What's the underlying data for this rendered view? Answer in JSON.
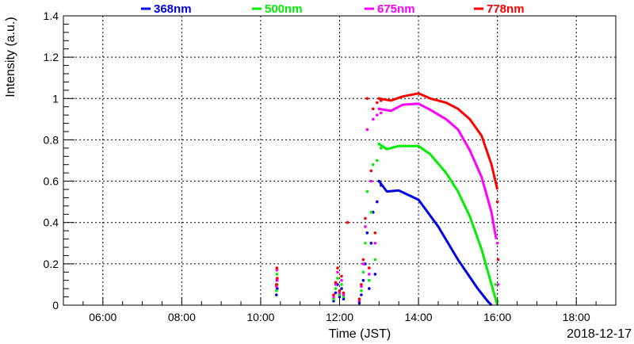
{
  "chart_data": {
    "type": "scatter",
    "xlabel": "Time (JST)",
    "ylabel": "Intensity (a.u.)",
    "date_label": "2018-12-17",
    "xlim": [
      5.0,
      19.0
    ],
    "ylim": [
      0,
      1.4
    ],
    "x_ticks": [
      6,
      8,
      10,
      12,
      14,
      16,
      18
    ],
    "x_tick_labels": [
      "06:00",
      "08:00",
      "10:00",
      "12:00",
      "14:00",
      "16:00",
      "18:00"
    ],
    "y_ticks": [
      0,
      0.2,
      0.4,
      0.6,
      0.8,
      1,
      1.2,
      1.4
    ],
    "y_tick_labels": [
      "0",
      "0.2",
      "0.4",
      "0.6",
      "0.8",
      "1",
      "1.2",
      "1.4"
    ],
    "grid": true,
    "legend_position": "top",
    "series": [
      {
        "name": "368nm",
        "color": "#0000e6",
        "points": [
          [
            10.4,
            0.05
          ],
          [
            10.41,
            0.12
          ],
          [
            10.42,
            0.08
          ],
          [
            11.85,
            0.02
          ],
          [
            11.9,
            0.06
          ],
          [
            11.95,
            0.1
          ],
          [
            12.0,
            0.04
          ],
          [
            12.05,
            0.08
          ],
          [
            12.1,
            0.03
          ],
          [
            12.5,
            0.01
          ],
          [
            12.55,
            0.05
          ],
          [
            12.6,
            0.12
          ],
          [
            12.65,
            0.2
          ],
          [
            12.7,
            0.35
          ],
          [
            12.75,
            0.08
          ],
          [
            12.8,
            0.3
          ],
          [
            12.85,
            0.45
          ],
          [
            12.9,
            0.15
          ],
          [
            12.95,
            0.5
          ],
          [
            13.0,
            0.6
          ],
          [
            13.05,
            0.58
          ]
        ],
        "curve": [
          [
            13.0,
            0.6
          ],
          [
            13.2,
            0.55
          ],
          [
            13.5,
            0.555
          ],
          [
            14.0,
            0.51
          ],
          [
            14.5,
            0.38
          ],
          [
            15.0,
            0.22
          ],
          [
            15.5,
            0.08
          ],
          [
            15.75,
            0.02
          ],
          [
            15.85,
            0.0
          ]
        ]
      },
      {
        "name": "500nm",
        "color": "#00ee00",
        "points": [
          [
            10.4,
            0.07
          ],
          [
            10.41,
            0.15
          ],
          [
            10.42,
            0.1
          ],
          [
            11.85,
            0.03
          ],
          [
            11.9,
            0.08
          ],
          [
            11.95,
            0.13
          ],
          [
            12.0,
            0.05
          ],
          [
            12.05,
            0.1
          ],
          [
            12.1,
            0.04
          ],
          [
            12.5,
            0.02
          ],
          [
            12.55,
            0.07
          ],
          [
            12.6,
            0.16
          ],
          [
            12.65,
            0.3
          ],
          [
            12.7,
            0.55
          ],
          [
            12.75,
            0.12
          ],
          [
            12.8,
            0.45
          ],
          [
            12.85,
            0.68
          ],
          [
            12.9,
            0.22
          ],
          [
            12.95,
            0.7
          ],
          [
            13.0,
            0.78
          ],
          [
            13.05,
            0.76
          ],
          [
            15.95,
            0.1
          ],
          [
            16.0,
            0.02
          ]
        ],
        "curve": [
          [
            13.0,
            0.78
          ],
          [
            13.2,
            0.755
          ],
          [
            13.5,
            0.77
          ],
          [
            14.0,
            0.77
          ],
          [
            14.3,
            0.73
          ],
          [
            14.7,
            0.64
          ],
          [
            15.0,
            0.55
          ],
          [
            15.3,
            0.43
          ],
          [
            15.6,
            0.27
          ],
          [
            15.85,
            0.1
          ],
          [
            16.0,
            0.0
          ]
        ]
      },
      {
        "name": "675nm",
        "color": "#ff00ff",
        "points": [
          [
            10.4,
            0.09
          ],
          [
            10.41,
            0.17
          ],
          [
            10.42,
            0.12
          ],
          [
            11.85,
            0.04
          ],
          [
            11.9,
            0.1
          ],
          [
            11.95,
            0.16
          ],
          [
            12.0,
            0.06
          ],
          [
            12.05,
            0.12
          ],
          [
            12.1,
            0.05
          ],
          [
            12.5,
            0.02
          ],
          [
            12.55,
            0.09
          ],
          [
            12.6,
            0.2
          ],
          [
            12.65,
            0.38
          ],
          [
            12.7,
            0.85
          ],
          [
            12.75,
            0.15
          ],
          [
            12.8,
            0.6
          ],
          [
            12.85,
            0.9
          ],
          [
            12.9,
            0.3
          ],
          [
            12.95,
            0.92
          ],
          [
            13.0,
            0.95
          ],
          [
            13.05,
            0.93
          ],
          [
            16.0,
            0.3
          ],
          [
            16.02,
            0.1
          ]
        ],
        "curve": [
          [
            13.0,
            0.95
          ],
          [
            13.3,
            0.94
          ],
          [
            13.6,
            0.97
          ],
          [
            14.0,
            0.975
          ],
          [
            14.3,
            0.945
          ],
          [
            14.7,
            0.9
          ],
          [
            15.0,
            0.85
          ],
          [
            15.3,
            0.75
          ],
          [
            15.6,
            0.62
          ],
          [
            15.85,
            0.45
          ],
          [
            15.97,
            0.32
          ]
        ]
      },
      {
        "name": "778nm",
        "color": "#ff0000",
        "points": [
          [
            10.4,
            0.1
          ],
          [
            10.41,
            0.18
          ],
          [
            10.42,
            0.13
          ],
          [
            11.85,
            0.05
          ],
          [
            11.9,
            0.11
          ],
          [
            11.95,
            0.18
          ],
          [
            12.0,
            0.07
          ],
          [
            12.05,
            0.14
          ],
          [
            12.1,
            0.06
          ],
          [
            12.2,
            0.4
          ],
          [
            12.5,
            0.03
          ],
          [
            12.55,
            0.1
          ],
          [
            12.6,
            0.22
          ],
          [
            12.65,
            0.42
          ],
          [
            12.7,
            1.0
          ],
          [
            12.75,
            0.18
          ],
          [
            12.8,
            0.65
          ],
          [
            12.85,
            0.95
          ],
          [
            12.9,
            0.35
          ],
          [
            12.95,
            0.98
          ],
          [
            13.0,
            1.0
          ],
          [
            13.05,
            0.99
          ],
          [
            16.0,
            0.5
          ],
          [
            16.02,
            0.22
          ]
        ],
        "curve": [
          [
            13.0,
            1.0
          ],
          [
            13.3,
            0.99
          ],
          [
            13.6,
            1.01
          ],
          [
            14.0,
            1.025
          ],
          [
            14.3,
            1.0
          ],
          [
            14.7,
            0.98
          ],
          [
            15.0,
            0.95
          ],
          [
            15.3,
            0.9
          ],
          [
            15.6,
            0.82
          ],
          [
            15.85,
            0.68
          ],
          [
            16.0,
            0.56
          ]
        ]
      }
    ]
  }
}
